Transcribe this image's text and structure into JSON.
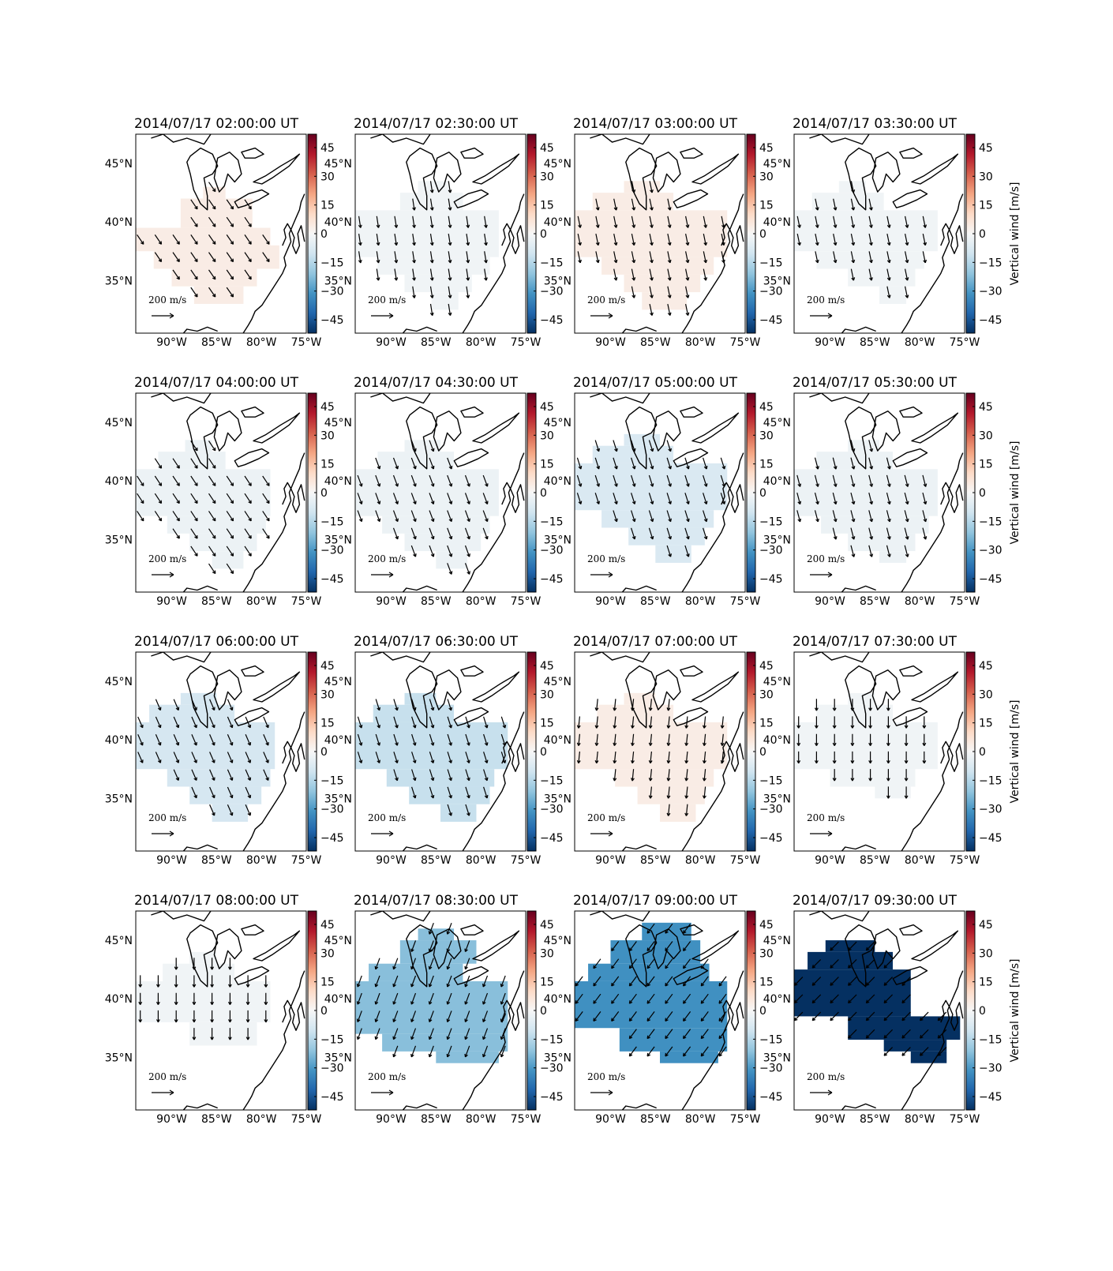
{
  "chart_data": {
    "type": "heatmap",
    "description_units": "colour = vertical wind in m/s; arrows = horizontal wind vectors",
    "colorbar": {
      "label": "Vertical wind [m/s]",
      "range": [
        -52,
        52
      ],
      "ticks": [
        "45",
        "30",
        "15",
        "0",
        "−15",
        "−30",
        "−45"
      ],
      "tick_values": [
        45,
        30,
        15,
        0,
        -15,
        -30,
        -45
      ],
      "colormap": "RdBu_r",
      "colors": [
        "#053061",
        "#2166ac",
        "#4393c3",
        "#92c5de",
        "#d1e5f0",
        "#f7f7f7",
        "#fddbc7",
        "#f4a582",
        "#d6604d",
        "#b2182b",
        "#67001f"
      ]
    },
    "lon_range": [
      -94,
      -75
    ],
    "lat_range": [
      30.5,
      47.5
    ],
    "lon_ticks": [
      "90°W",
      "85°W",
      "80°W",
      "75°W"
    ],
    "lon_tick_values": [
      -90,
      -85,
      -80,
      -75
    ],
    "lat_ticks": [
      "45°N",
      "40°N",
      "35°N"
    ],
    "lat_tick_values": [
      45,
      40,
      35
    ],
    "reference_arrow": {
      "label": "200 m/s",
      "value": 200
    },
    "panels": [
      {
        "title": "2014/07/17 02:00:00 UT",
        "value": 4,
        "u": 0.55,
        "v": -0.8,
        "region": [
          [
            -94,
            37.5,
            -79,
            39.5
          ],
          [
            -92,
            36,
            -78,
            38
          ],
          [
            -90,
            34.5,
            -80.5,
            36
          ],
          [
            -87.5,
            33,
            -82,
            34.5
          ],
          [
            -89,
            39.5,
            -81,
            42
          ],
          [
            -86.5,
            42,
            -84,
            43
          ]
        ]
      },
      {
        "title": "2014/07/17 02:30:00 UT",
        "value": -2,
        "u": 0.15,
        "v": -0.98,
        "region": [
          [
            -94,
            37,
            -78,
            41
          ],
          [
            -89,
            41,
            -82,
            42.5
          ],
          [
            -87,
            42.5,
            -83.5,
            43.5
          ],
          [
            -91.5,
            35.5,
            -79,
            37
          ],
          [
            -88.5,
            34,
            -81,
            35.5
          ],
          [
            -85.5,
            32.5,
            -82.5,
            34
          ]
        ]
      },
      {
        "title": "2014/07/17 03:00:00 UT",
        "value": 4,
        "u": 0.2,
        "v": -0.97,
        "region": [
          [
            -94,
            37,
            -77,
            41
          ],
          [
            -92,
            41,
            -83,
            42.5
          ],
          [
            -88.5,
            42.5,
            -84.5,
            43.5
          ],
          [
            -91,
            35.5,
            -78.5,
            37
          ],
          [
            -88.5,
            34,
            -80,
            35.5
          ],
          [
            -86.5,
            32.5,
            -81.5,
            34
          ]
        ]
      },
      {
        "title": "2014/07/17 03:30:00 UT",
        "value": -2,
        "u": 0.2,
        "v": -0.97,
        "region": [
          [
            -94,
            37.5,
            -78,
            41
          ],
          [
            -92,
            41,
            -84,
            42.5
          ],
          [
            -89,
            42.5,
            -86,
            43.5
          ],
          [
            -91.5,
            36,
            -79.5,
            37.5
          ],
          [
            -88,
            34.5,
            -80.5,
            36
          ],
          [
            -84.5,
            33,
            -81.5,
            34.5
          ]
        ]
      },
      {
        "title": "2014/07/17 04:00:00 UT",
        "value": -3,
        "u": 0.55,
        "v": -0.83,
        "region": [
          [
            -94,
            37,
            -79,
            41
          ],
          [
            -91.5,
            41,
            -84,
            42.5
          ],
          [
            -88.5,
            42.5,
            -85.5,
            43.5
          ],
          [
            -90.5,
            35.5,
            -79.5,
            37
          ],
          [
            -88,
            34,
            -80.5,
            35.5
          ],
          [
            -85.5,
            32.5,
            -82,
            34
          ]
        ]
      },
      {
        "title": "2014/07/17 04:30:00 UT",
        "value": -3,
        "u": 0.35,
        "v": -0.94,
        "region": [
          [
            -94,
            37,
            -78,
            41
          ],
          [
            -91.5,
            41,
            -83,
            42.5
          ],
          [
            -88.5,
            42.5,
            -84.5,
            43.5
          ],
          [
            -91,
            35.5,
            -79,
            37
          ],
          [
            -88.5,
            34,
            -80,
            35.5
          ],
          [
            -85,
            32.5,
            -81.5,
            34
          ]
        ]
      },
      {
        "title": "2014/07/17 05:00:00 UT",
        "value": -8,
        "u": 0.3,
        "v": -0.95,
        "region": [
          [
            -94,
            37.5,
            -77,
            41.5
          ],
          [
            -92,
            41.5,
            -83,
            43
          ],
          [
            -88.5,
            43,
            -84.5,
            44
          ],
          [
            -91,
            36,
            -78.5,
            37.5
          ],
          [
            -88,
            34.5,
            -79.5,
            36
          ],
          [
            -85,
            33,
            -81,
            34.5
          ]
        ]
      },
      {
        "title": "2014/07/17 05:30:00 UT",
        "value": -3,
        "u": 0.25,
        "v": -0.97,
        "region": [
          [
            -94,
            37,
            -78,
            41
          ],
          [
            -91.5,
            41,
            -83,
            42.5
          ],
          [
            -88,
            42.5,
            -84.5,
            43.5
          ],
          [
            -91,
            35.5,
            -79,
            37
          ],
          [
            -88,
            34,
            -80.5,
            35.5
          ],
          [
            -84.5,
            33,
            -81.5,
            34
          ]
        ]
      },
      {
        "title": "2014/07/17 06:00:00 UT",
        "value": -9,
        "u": 0.4,
        "v": -0.92,
        "region": [
          [
            -94,
            37.5,
            -78.5,
            41.5
          ],
          [
            -92.5,
            41.5,
            -83,
            43
          ],
          [
            -89,
            43,
            -85,
            44
          ],
          [
            -90.5,
            36,
            -79,
            37.5
          ],
          [
            -88,
            34.5,
            -80,
            36
          ],
          [
            -85.5,
            33,
            -81.5,
            34.5
          ]
        ]
      },
      {
        "title": "2014/07/17 06:30:00 UT",
        "value": -12,
        "u": 0.3,
        "v": -0.95,
        "region": [
          [
            -94,
            37.5,
            -77,
            41.5
          ],
          [
            -92,
            41.5,
            -83,
            43
          ],
          [
            -88.5,
            43,
            -85,
            44
          ],
          [
            -90.5,
            36,
            -78.5,
            37.5
          ],
          [
            -88,
            34.5,
            -79,
            36
          ],
          [
            -84.5,
            33,
            -80.5,
            34.5
          ]
        ]
      },
      {
        "title": "2014/07/17 07:00:00 UT",
        "value": 4,
        "u": -0.1,
        "v": -0.99,
        "region": [
          [
            -94,
            37.5,
            -77,
            41.5
          ],
          [
            -91.5,
            41.5,
            -83,
            43
          ],
          [
            -88.5,
            43,
            -85,
            44
          ],
          [
            -89.5,
            36,
            -78.5,
            37.5
          ],
          [
            -87,
            34.5,
            -79.5,
            36
          ],
          [
            -84.5,
            33,
            -80.5,
            34.5
          ]
        ]
      },
      {
        "title": "2014/07/17 07:30:00 UT",
        "value": -2,
        "u": 0.0,
        "v": -1.0,
        "region": [
          [
            -94,
            37.5,
            -78,
            41.5
          ],
          [
            -91.5,
            41.5,
            -83,
            43
          ],
          [
            -88,
            43,
            -85,
            44
          ],
          [
            -90,
            36,
            -80.5,
            37.5
          ],
          [
            -85,
            35,
            -81,
            36
          ]
        ]
      },
      {
        "title": "2014/07/17 08:00:00 UT",
        "value": -2,
        "u": 0.0,
        "v": -1.0,
        "region": [
          [
            -94,
            38,
            -79,
            41.5
          ],
          [
            -91,
            41.5,
            -83,
            43
          ],
          [
            -88,
            43,
            -85,
            44
          ],
          [
            -88,
            36,
            -80.5,
            38
          ]
        ]
      },
      {
        "title": "2014/07/17 08:30:00 UT",
        "value": -22,
        "u": -0.35,
        "v": -0.94,
        "region": [
          [
            -94,
            37,
            -77,
            41.5
          ],
          [
            -92.5,
            41.5,
            -82,
            43
          ],
          [
            -89,
            43,
            -80.5,
            45
          ],
          [
            -87,
            45,
            -83,
            46
          ],
          [
            -91,
            35.5,
            -77,
            37
          ],
          [
            -85,
            34.5,
            -78,
            35.5
          ]
        ]
      },
      {
        "title": "2014/07/17 09:00:00 UT",
        "value": -32,
        "u": -0.6,
        "v": -0.8,
        "region": [
          [
            -94,
            37.5,
            -77,
            41.5
          ],
          [
            -92.5,
            41.5,
            -79,
            43
          ],
          [
            -90,
            43,
            -80,
            45
          ],
          [
            -86.5,
            45,
            -81,
            46.5
          ],
          [
            -89,
            35.5,
            -77,
            37.5
          ],
          [
            -84.5,
            34.5,
            -78,
            35.5
          ]
        ]
      },
      {
        "title": "2014/07/17 09:30:00 UT",
        "value": -52,
        "u": -0.7,
        "v": -0.71,
        "region": [
          [
            -94,
            38.5,
            -81,
            42.5
          ],
          [
            -92.5,
            42.5,
            -83,
            44
          ],
          [
            -90.5,
            44,
            -85,
            45
          ],
          [
            -88,
            36.5,
            -75.5,
            38.5
          ],
          [
            -84,
            35.5,
            -77,
            36.5
          ],
          [
            -81,
            34.5,
            -77,
            35.5
          ]
        ]
      }
    ]
  }
}
